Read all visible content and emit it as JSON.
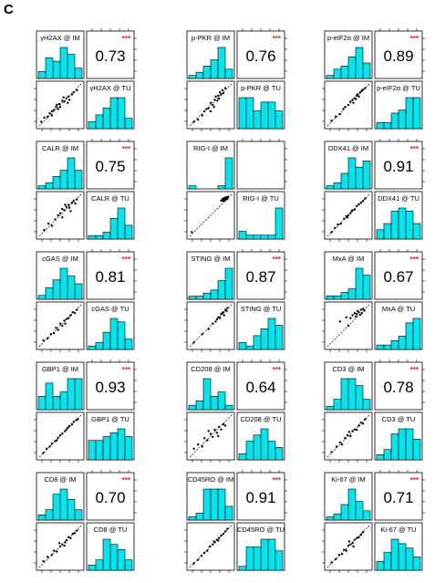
{
  "panel_label": "C",
  "colors": {
    "bar_fill": "#00e5ee",
    "bar_stroke": "#000000",
    "stars": "#e02020",
    "trend": "#000000"
  },
  "significance": "***",
  "chart_data": [
    {
      "type": "scatter",
      "im_label": "γH2AX @ IM",
      "tu_label": "γH2AX @ TU",
      "r": "0.73",
      "hist_im": [
        2,
        6,
        5,
        9,
        7,
        3
      ],
      "hist_tu": [
        2,
        4,
        6,
        9,
        9,
        3
      ],
      "points": [
        [
          0.05,
          0.1
        ],
        [
          0.12,
          0.2
        ],
        [
          0.2,
          0.22
        ],
        [
          0.25,
          0.3
        ],
        [
          0.3,
          0.35
        ],
        [
          0.35,
          0.38
        ],
        [
          0.4,
          0.45
        ],
        [
          0.42,
          0.5
        ],
        [
          0.48,
          0.52
        ],
        [
          0.5,
          0.45
        ],
        [
          0.55,
          0.6
        ],
        [
          0.6,
          0.58
        ],
        [
          0.65,
          0.66
        ],
        [
          0.7,
          0.7
        ],
        [
          0.72,
          0.62
        ],
        [
          0.78,
          0.75
        ],
        [
          0.82,
          0.8
        ],
        [
          0.9,
          0.85
        ],
        [
          0.3,
          0.25
        ],
        [
          0.58,
          0.68
        ],
        [
          0.45,
          0.4
        ],
        [
          0.68,
          0.55
        ]
      ]
    },
    {
      "type": "scatter",
      "im_label": "p-PKR @ IM",
      "tu_label": "p-PKR @ TU",
      "r": "0.76",
      "hist_im": [
        1,
        2,
        4,
        6,
        10,
        3
      ],
      "hist_tu": [
        7,
        7,
        4,
        6,
        6,
        4
      ],
      "points": [
        [
          0.1,
          0.1
        ],
        [
          0.2,
          0.15
        ],
        [
          0.3,
          0.25
        ],
        [
          0.35,
          0.35
        ],
        [
          0.4,
          0.4
        ],
        [
          0.45,
          0.42
        ],
        [
          0.5,
          0.55
        ],
        [
          0.55,
          0.5
        ],
        [
          0.6,
          0.62
        ],
        [
          0.62,
          0.7
        ],
        [
          0.68,
          0.72
        ],
        [
          0.7,
          0.65
        ],
        [
          0.72,
          0.8
        ],
        [
          0.78,
          0.85
        ],
        [
          0.8,
          0.78
        ],
        [
          0.85,
          0.9
        ],
        [
          0.75,
          0.75
        ],
        [
          0.66,
          0.6
        ],
        [
          0.5,
          0.35
        ],
        [
          0.58,
          0.45
        ]
      ]
    },
    {
      "type": "scatter",
      "im_label": "p-eIF2α @ IM",
      "tu_label": "p-eIF2α @ TU",
      "r": "0.89",
      "hist_im": [
        1,
        3,
        4,
        7,
        10,
        5
      ],
      "hist_tu": [
        2,
        2,
        5,
        6,
        10,
        10
      ],
      "points": [
        [
          0.1,
          0.12
        ],
        [
          0.2,
          0.22
        ],
        [
          0.3,
          0.28
        ],
        [
          0.38,
          0.4
        ],
        [
          0.42,
          0.45
        ],
        [
          0.5,
          0.5
        ],
        [
          0.55,
          0.58
        ],
        [
          0.6,
          0.62
        ],
        [
          0.65,
          0.66
        ],
        [
          0.7,
          0.72
        ],
        [
          0.72,
          0.75
        ],
        [
          0.78,
          0.8
        ],
        [
          0.82,
          0.84
        ],
        [
          0.85,
          0.86
        ],
        [
          0.9,
          0.9
        ],
        [
          0.75,
          0.7
        ],
        [
          0.68,
          0.64
        ],
        [
          0.62,
          0.55
        ]
      ]
    },
    {
      "type": "scatter",
      "im_label": "CALR @ IM",
      "tu_label": "CALR @ TU",
      "r": "0.75",
      "hist_im": [
        1,
        2,
        4,
        6,
        10,
        6
      ],
      "hist_tu": [
        1,
        1,
        2,
        6,
        9,
        4
      ],
      "points": [
        [
          0.12,
          0.15
        ],
        [
          0.22,
          0.3
        ],
        [
          0.3,
          0.25
        ],
        [
          0.38,
          0.4
        ],
        [
          0.45,
          0.5
        ],
        [
          0.5,
          0.55
        ],
        [
          0.55,
          0.45
        ],
        [
          0.6,
          0.62
        ],
        [
          0.65,
          0.7
        ],
        [
          0.7,
          0.75
        ],
        [
          0.72,
          0.68
        ],
        [
          0.78,
          0.8
        ],
        [
          0.82,
          0.85
        ],
        [
          0.86,
          0.78
        ],
        [
          0.9,
          0.88
        ],
        [
          0.75,
          0.6
        ],
        [
          0.62,
          0.75
        ],
        [
          0.55,
          0.65
        ]
      ]
    },
    {
      "type": "scatter",
      "im_label": "RIG-I @ IM",
      "tu_label": "RIG-I @ TU",
      "r": "",
      "hist_im": [
        1,
        0,
        0,
        0,
        1,
        10
      ],
      "hist_tu": [
        2,
        1,
        1,
        1,
        1,
        8
      ],
      "points": [
        [
          0.05,
          0.1
        ],
        [
          0.75,
          0.85
        ],
        [
          0.78,
          0.88
        ],
        [
          0.8,
          0.9
        ],
        [
          0.82,
          0.87
        ],
        [
          0.84,
          0.92
        ],
        [
          0.86,
          0.9
        ],
        [
          0.88,
          0.93
        ],
        [
          0.9,
          0.89
        ],
        [
          0.92,
          0.94
        ],
        [
          0.85,
          0.86
        ],
        [
          0.8,
          0.84
        ]
      ]
    },
    {
      "type": "scatter",
      "im_label": "DDX41 @ IM",
      "tu_label": "DDX41 @ TU",
      "r": "0.91",
      "hist_im": [
        1,
        2,
        5,
        10,
        7,
        9
      ],
      "hist_tu": [
        3,
        5,
        9,
        10,
        9,
        5
      ],
      "points": [
        [
          0.1,
          0.1
        ],
        [
          0.18,
          0.2
        ],
        [
          0.25,
          0.28
        ],
        [
          0.32,
          0.3
        ],
        [
          0.4,
          0.42
        ],
        [
          0.45,
          0.48
        ],
        [
          0.5,
          0.5
        ],
        [
          0.55,
          0.55
        ],
        [
          0.6,
          0.62
        ],
        [
          0.65,
          0.64
        ],
        [
          0.7,
          0.72
        ],
        [
          0.75,
          0.76
        ],
        [
          0.8,
          0.8
        ],
        [
          0.85,
          0.84
        ],
        [
          0.9,
          0.9
        ],
        [
          0.58,
          0.6
        ],
        [
          0.48,
          0.45
        ]
      ]
    },
    {
      "type": "scatter",
      "im_label": "cGAS @ IM",
      "tu_label": "cGAS @ TU",
      "r": "0.81",
      "hist_im": [
        1,
        3,
        5,
        8,
        6,
        4
      ],
      "hist_tu": [
        1,
        2,
        5,
        9,
        8,
        3
      ],
      "points": [
        [
          0.1,
          0.15
        ],
        [
          0.2,
          0.2
        ],
        [
          0.28,
          0.3
        ],
        [
          0.35,
          0.32
        ],
        [
          0.4,
          0.45
        ],
        [
          0.45,
          0.4
        ],
        [
          0.5,
          0.55
        ],
        [
          0.55,
          0.5
        ],
        [
          0.6,
          0.62
        ],
        [
          0.65,
          0.66
        ],
        [
          0.7,
          0.68
        ],
        [
          0.75,
          0.75
        ],
        [
          0.8,
          0.82
        ],
        [
          0.85,
          0.8
        ],
        [
          0.9,
          0.88
        ],
        [
          0.62,
          0.55
        ]
      ]
    },
    {
      "type": "scatter",
      "im_label": "STING @ IM",
      "tu_label": "STING @ TU",
      "r": "0.87",
      "hist_im": [
        1,
        1,
        2,
        3,
        6,
        10
      ],
      "hist_tu": [
        2,
        1,
        4,
        6,
        9,
        7
      ],
      "points": [
        [
          0.1,
          0.1
        ],
        [
          0.3,
          0.3
        ],
        [
          0.45,
          0.42
        ],
        [
          0.55,
          0.55
        ],
        [
          0.62,
          0.6
        ],
        [
          0.68,
          0.7
        ],
        [
          0.72,
          0.68
        ],
        [
          0.75,
          0.78
        ],
        [
          0.8,
          0.82
        ],
        [
          0.82,
          0.75
        ],
        [
          0.85,
          0.88
        ],
        [
          0.88,
          0.85
        ],
        [
          0.9,
          0.92
        ],
        [
          0.78,
          0.8
        ],
        [
          0.65,
          0.65
        ]
      ]
    },
    {
      "type": "scatter",
      "im_label": "MxA @ IM",
      "tu_label": "MxA @ TU",
      "r": "0.67",
      "hist_im": [
        1,
        1,
        2,
        3,
        9,
        7
      ],
      "hist_tu": [
        1,
        1,
        2,
        3,
        6,
        7
      ],
      "points": [
        [
          0.3,
          0.6
        ],
        [
          0.45,
          0.7
        ],
        [
          0.55,
          0.68
        ],
        [
          0.6,
          0.75
        ],
        [
          0.65,
          0.8
        ],
        [
          0.7,
          0.78
        ],
        [
          0.72,
          0.85
        ],
        [
          0.75,
          0.82
        ],
        [
          0.8,
          0.88
        ],
        [
          0.82,
          0.8
        ],
        [
          0.85,
          0.9
        ],
        [
          0.88,
          0.86
        ],
        [
          0.68,
          0.72
        ],
        [
          0.78,
          0.76
        ],
        [
          0.5,
          0.5
        ]
      ]
    },
    {
      "type": "scatter",
      "im_label": "GBP1 @ IM",
      "tu_label": "GBP1 @ TU",
      "r": "0.93",
      "hist_im": [
        3,
        6,
        3,
        4,
        7,
        7
      ],
      "hist_tu": [
        5,
        5,
        6,
        7,
        8,
        6
      ],
      "points": [
        [
          0.1,
          0.1
        ],
        [
          0.18,
          0.2
        ],
        [
          0.25,
          0.25
        ],
        [
          0.3,
          0.32
        ],
        [
          0.38,
          0.38
        ],
        [
          0.45,
          0.46
        ],
        [
          0.5,
          0.52
        ],
        [
          0.55,
          0.56
        ],
        [
          0.62,
          0.62
        ],
        [
          0.68,
          0.7
        ],
        [
          0.72,
          0.74
        ],
        [
          0.78,
          0.78
        ],
        [
          0.82,
          0.84
        ],
        [
          0.88,
          0.88
        ],
        [
          0.92,
          0.9
        ],
        [
          0.65,
          0.66
        ],
        [
          0.42,
          0.4
        ]
      ]
    },
    {
      "type": "scatter",
      "im_label": "CD208 @ IM",
      "tu_label": "CD208 @ TU",
      "r": "0.64",
      "hist_im": [
        1,
        2,
        7,
        3,
        4,
        1
      ],
      "hist_tu": [
        1,
        3,
        4,
        5,
        3,
        2
      ],
      "points": [
        [
          0.1,
          0.2
        ],
        [
          0.2,
          0.3
        ],
        [
          0.3,
          0.25
        ],
        [
          0.35,
          0.45
        ],
        [
          0.42,
          0.4
        ],
        [
          0.5,
          0.55
        ],
        [
          0.55,
          0.48
        ],
        [
          0.6,
          0.65
        ],
        [
          0.65,
          0.58
        ],
        [
          0.7,
          0.72
        ],
        [
          0.75,
          0.66
        ],
        [
          0.8,
          0.78
        ],
        [
          0.85,
          0.75
        ],
        [
          0.45,
          0.62
        ],
        [
          0.68,
          0.5
        ]
      ]
    },
    {
      "type": "scatter",
      "im_label": "CD3 @ IM",
      "tu_label": "CD3 @ TU",
      "r": "0.78",
      "hist_im": [
        1,
        3,
        9,
        9,
        7,
        3
      ],
      "hist_tu": [
        1,
        2,
        5,
        6,
        6,
        4
      ],
      "points": [
        [
          0.1,
          0.12
        ],
        [
          0.22,
          0.25
        ],
        [
          0.3,
          0.35
        ],
        [
          0.35,
          0.3
        ],
        [
          0.42,
          0.45
        ],
        [
          0.48,
          0.52
        ],
        [
          0.55,
          0.5
        ],
        [
          0.6,
          0.62
        ],
        [
          0.65,
          0.66
        ],
        [
          0.7,
          0.65
        ],
        [
          0.75,
          0.75
        ],
        [
          0.8,
          0.82
        ],
        [
          0.85,
          0.8
        ],
        [
          0.9,
          0.9
        ],
        [
          0.52,
          0.6
        ]
      ]
    },
    {
      "type": "scatter",
      "im_label": "CD8 @ IM",
      "tu_label": "CD8 @ TU",
      "r": "0.70",
      "hist_im": [
        1,
        2,
        5,
        6,
        4,
        2
      ],
      "hist_tu": [
        1,
        2,
        6,
        5,
        4,
        2
      ],
      "points": [
        [
          0.1,
          0.15
        ],
        [
          0.2,
          0.25
        ],
        [
          0.3,
          0.3
        ],
        [
          0.35,
          0.4
        ],
        [
          0.42,
          0.38
        ],
        [
          0.5,
          0.5
        ],
        [
          0.55,
          0.55
        ],
        [
          0.6,
          0.52
        ],
        [
          0.65,
          0.65
        ],
        [
          0.7,
          0.72
        ],
        [
          0.75,
          0.7
        ],
        [
          0.8,
          0.8
        ],
        [
          0.85,
          0.82
        ],
        [
          0.9,
          0.88
        ],
        [
          0.62,
          0.6
        ],
        [
          0.48,
          0.58
        ]
      ]
    },
    {
      "type": "scatter",
      "im_label": "CD45RO @ IM",
      "tu_label": "CD45RO @ TU",
      "r": "0.91",
      "hist_im": [
        1,
        2,
        9,
        9,
        9,
        4
      ],
      "hist_tu": [
        1,
        6,
        6,
        8,
        8,
        5
      ],
      "points": [
        [
          0.1,
          0.1
        ],
        [
          0.2,
          0.18
        ],
        [
          0.28,
          0.28
        ],
        [
          0.35,
          0.35
        ],
        [
          0.42,
          0.4
        ],
        [
          0.48,
          0.5
        ],
        [
          0.55,
          0.55
        ],
        [
          0.6,
          0.6
        ],
        [
          0.65,
          0.66
        ],
        [
          0.7,
          0.7
        ],
        [
          0.75,
          0.76
        ],
        [
          0.8,
          0.8
        ],
        [
          0.85,
          0.86
        ],
        [
          0.9,
          0.92
        ],
        [
          0.58,
          0.62
        ],
        [
          0.68,
          0.64
        ]
      ]
    },
    {
      "type": "scatter",
      "im_label": "Ki-67 @ IM",
      "tu_label": "Ki-67 @ TU",
      "r": "0.71",
      "hist_im": [
        1,
        2,
        5,
        10,
        6,
        3
      ],
      "hist_tu": [
        2,
        4,
        7,
        6,
        5,
        3
      ],
      "points": [
        [
          0.1,
          0.12
        ],
        [
          0.2,
          0.2
        ],
        [
          0.28,
          0.3
        ],
        [
          0.35,
          0.32
        ],
        [
          0.4,
          0.42
        ],
        [
          0.45,
          0.4
        ],
        [
          0.5,
          0.52
        ],
        [
          0.55,
          0.55
        ],
        [
          0.6,
          0.58
        ],
        [
          0.65,
          0.66
        ],
        [
          0.7,
          0.7
        ],
        [
          0.75,
          0.72
        ],
        [
          0.8,
          0.78
        ],
        [
          0.85,
          0.84
        ],
        [
          0.52,
          0.62
        ],
        [
          0.62,
          0.5
        ]
      ]
    }
  ]
}
